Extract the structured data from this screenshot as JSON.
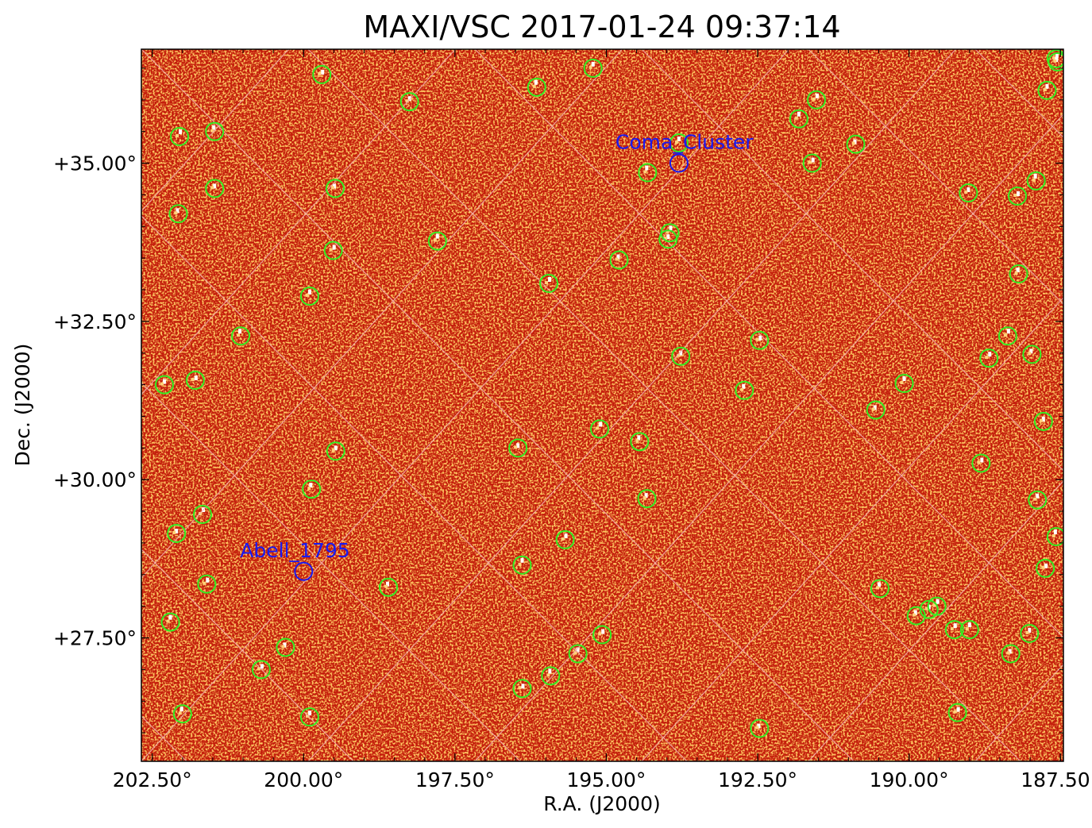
{
  "colors": {
    "background": "#c41e0c",
    "noise_light": "#e65a12",
    "noise_hot": "#ffd27a",
    "hot_pixel": "#ffffff",
    "grid": "#f4b0b0",
    "source_circle": "#33ee22",
    "annotation": "#1a1aee"
  },
  "chart_data": {
    "type": "image",
    "title": "MAXI/VSC 2017-01-24 09:37:14",
    "xlabel": "R.A. (J2000)",
    "ylabel": "Dec. (J2000)",
    "xlim": [
      202.68,
      187.45
    ],
    "ylim": [
      36.8,
      25.55
    ],
    "xticks": [
      {
        "value": 202.5,
        "label": "202.50°"
      },
      {
        "value": 200.0,
        "label": "200.00°"
      },
      {
        "value": 197.5,
        "label": "197.50°"
      },
      {
        "value": 195.0,
        "label": "195.00°"
      },
      {
        "value": 192.5,
        "label": "192.50°"
      },
      {
        "value": 190.0,
        "label": "190.00°"
      },
      {
        "value": 187.5,
        "label": "187.50°"
      }
    ],
    "yticks": [
      {
        "value": 27.5,
        "label": "+27.50°"
      },
      {
        "value": 30.0,
        "label": "+30.00°"
      },
      {
        "value": 32.5,
        "label": "+32.50°"
      },
      {
        "value": 35.0,
        "label": "+35.00°"
      }
    ],
    "grid": true,
    "annotations": [
      {
        "name": "Abell_1795",
        "ra": 200.0,
        "dec": 28.55
      },
      {
        "name": "Coma_Cluster",
        "ra": 193.8,
        "dec": 35.0
      }
    ],
    "sources": [
      {
        "ra": 202.0,
        "dec": 26.3
      },
      {
        "ra": 199.9,
        "dec": 26.25
      },
      {
        "ra": 200.7,
        "dec": 27.0
      },
      {
        "ra": 200.3,
        "dec": 27.35
      },
      {
        "ra": 202.2,
        "dec": 27.75
      },
      {
        "ra": 201.6,
        "dec": 28.35
      },
      {
        "ra": 198.6,
        "dec": 28.3
      },
      {
        "ra": 202.1,
        "dec": 29.15
      },
      {
        "ra": 201.67,
        "dec": 29.45
      },
      {
        "ra": 199.87,
        "dec": 29.85
      },
      {
        "ra": 199.47,
        "dec": 30.45
      },
      {
        "ra": 196.39,
        "dec": 26.7
      },
      {
        "ra": 195.92,
        "dec": 26.9
      },
      {
        "ra": 195.47,
        "dec": 27.25
      },
      {
        "ra": 195.07,
        "dec": 27.55
      },
      {
        "ra": 192.47,
        "dec": 26.07
      },
      {
        "ra": 196.39,
        "dec": 28.65
      },
      {
        "ra": 195.68,
        "dec": 29.05
      },
      {
        "ra": 194.33,
        "dec": 29.7
      },
      {
        "ra": 196.46,
        "dec": 30.5
      },
      {
        "ra": 195.11,
        "dec": 30.8
      },
      {
        "ra": 194.45,
        "dec": 30.6
      },
      {
        "ra": 202.3,
        "dec": 31.5
      },
      {
        "ra": 201.79,
        "dec": 31.57
      },
      {
        "ra": 201.04,
        "dec": 32.27
      },
      {
        "ra": 199.9,
        "dec": 32.9
      },
      {
        "ra": 199.51,
        "dec": 33.62
      },
      {
        "ra": 199.48,
        "dec": 34.6
      },
      {
        "ra": 197.79,
        "dec": 33.77
      },
      {
        "ra": 195.95,
        "dec": 33.1
      },
      {
        "ra": 194.79,
        "dec": 33.47
      },
      {
        "ra": 193.98,
        "dec": 33.8
      },
      {
        "ra": 193.95,
        "dec": 33.9
      },
      {
        "ra": 192.72,
        "dec": 31.41
      },
      {
        "ra": 193.77,
        "dec": 31.95
      },
      {
        "ra": 192.47,
        "dec": 32.2
      },
      {
        "ra": 194.32,
        "dec": 34.85
      },
      {
        "ra": 193.8,
        "dec": 35.32
      },
      {
        "ra": 191.6,
        "dec": 35.0
      },
      {
        "ra": 190.88,
        "dec": 35.3
      },
      {
        "ra": 191.82,
        "dec": 35.7
      },
      {
        "ra": 191.53,
        "dec": 36.0
      },
      {
        "ra": 202.07,
        "dec": 34.2
      },
      {
        "ra": 201.47,
        "dec": 34.6
      },
      {
        "ra": 202.05,
        "dec": 35.42
      },
      {
        "ra": 201.47,
        "dec": 35.5
      },
      {
        "ra": 198.25,
        "dec": 35.97
      },
      {
        "ra": 199.7,
        "dec": 36.4
      },
      {
        "ra": 196.15,
        "dec": 36.2
      },
      {
        "ra": 195.22,
        "dec": 36.5
      },
      {
        "ra": 189.2,
        "dec": 26.32
      },
      {
        "ra": 188.32,
        "dec": 27.25
      },
      {
        "ra": 189.0,
        "dec": 27.63
      },
      {
        "ra": 189.25,
        "dec": 27.63
      },
      {
        "ra": 189.88,
        "dec": 27.85
      },
      {
        "ra": 189.67,
        "dec": 27.95
      },
      {
        "ra": 189.54,
        "dec": 28.0
      },
      {
        "ra": 190.48,
        "dec": 28.28
      },
      {
        "ra": 188.01,
        "dec": 27.57
      },
      {
        "ra": 187.75,
        "dec": 28.6
      },
      {
        "ra": 187.57,
        "dec": 29.1
      },
      {
        "ra": 187.88,
        "dec": 29.68
      },
      {
        "ra": 188.81,
        "dec": 30.26
      },
      {
        "ra": 190.55,
        "dec": 31.1
      },
      {
        "ra": 190.08,
        "dec": 31.52
      },
      {
        "ra": 188.68,
        "dec": 31.92
      },
      {
        "ra": 187.97,
        "dec": 31.98
      },
      {
        "ra": 187.78,
        "dec": 30.92
      },
      {
        "ra": 188.37,
        "dec": 32.27
      },
      {
        "ra": 188.19,
        "dec": 33.25
      },
      {
        "ra": 189.02,
        "dec": 34.53
      },
      {
        "ra": 188.21,
        "dec": 34.48
      },
      {
        "ra": 187.9,
        "dec": 34.72
      },
      {
        "ra": 187.72,
        "dec": 36.15
      },
      {
        "ra": 187.57,
        "dec": 36.65
      },
      {
        "ra": 187.55,
        "dec": 36.6
      }
    ]
  }
}
